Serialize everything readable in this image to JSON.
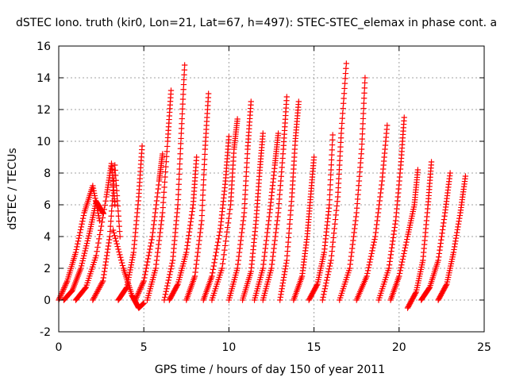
{
  "chart_data": {
    "type": "scatter",
    "title": "dSTEC Iono. truth (kir0, Lon=21, Lat=67, h=497): STEC-STEC_elemax in phase cont. a",
    "xlabel": "GPS time / hours of day 150 of year 2011",
    "ylabel": "dSTEC  / TECUs",
    "xlim": [
      0,
      25
    ],
    "ylim": [
      -2,
      16
    ],
    "xticks": [
      0,
      5,
      10,
      15,
      20,
      25
    ],
    "yticks": [
      -2,
      0,
      2,
      4,
      6,
      8,
      10,
      12,
      14,
      16
    ],
    "xtick_labels": [
      "0",
      "5",
      "10",
      "15",
      "20",
      "25"
    ],
    "ytick_labels": [
      "-2",
      "0",
      "2",
      "4",
      "6",
      "8",
      "10",
      "12",
      "14",
      "16"
    ],
    "grid": true,
    "legend": "none",
    "marker": "+",
    "color": "#ff0000",
    "series": [
      {
        "x": [
          0.0,
          0.5,
          1.0,
          1.5,
          2.0,
          2.4
        ],
        "y": [
          0.0,
          1.2,
          3.0,
          5.5,
          7.2,
          5.0
        ]
      },
      {
        "x": [
          0.3,
          0.8,
          1.3,
          1.8,
          2.2,
          2.6
        ],
        "y": [
          0.0,
          0.6,
          2.0,
          4.2,
          6.2,
          5.5
        ]
      },
      {
        "x": [
          1.0,
          1.6,
          2.2,
          2.8,
          3.1,
          3.3
        ],
        "y": [
          0.0,
          0.8,
          2.8,
          6.5,
          8.6,
          6.0
        ]
      },
      {
        "x": [
          2.0,
          2.6,
          3.0,
          3.3,
          3.6
        ],
        "y": [
          0.0,
          1.2,
          4.0,
          8.5,
          4.0
        ]
      },
      {
        "x": [
          3.2,
          3.8,
          4.3,
          4.7,
          5.0
        ],
        "y": [
          4.4,
          2.0,
          0.3,
          -0.5,
          -0.2
        ]
      },
      {
        "x": [
          3.5,
          4.0,
          4.4,
          4.7,
          4.9
        ],
        "y": [
          0.0,
          0.8,
          3.0,
          6.5,
          9.7
        ]
      },
      {
        "x": [
          4.5,
          5.0,
          5.5,
          5.9,
          6.1
        ],
        "y": [
          0.0,
          1.2,
          4.0,
          7.5,
          9.2
        ]
      },
      {
        "x": [
          5.2,
          5.7,
          6.1,
          6.4,
          6.6
        ],
        "y": [
          0.0,
          2.0,
          5.5,
          10.0,
          13.2
        ]
      },
      {
        "x": [
          6.2,
          6.7,
          7.0,
          7.2,
          7.4
        ],
        "y": [
          0.0,
          2.5,
          6.0,
          10.5,
          14.8
        ]
      },
      {
        "x": [
          6.5,
          7.0,
          7.5,
          7.9,
          8.1
        ],
        "y": [
          0.0,
          1.0,
          3.0,
          6.0,
          9.0
        ]
      },
      {
        "x": [
          7.5,
          8.0,
          8.4,
          8.6,
          8.8
        ],
        "y": [
          0.0,
          1.5,
          5.0,
          9.5,
          13.0
        ]
      },
      {
        "x": [
          8.5,
          9.0,
          9.5,
          9.8,
          10.0
        ],
        "y": [
          0.0,
          1.5,
          4.5,
          7.5,
          10.3
        ]
      },
      {
        "x": [
          9.0,
          9.6,
          10.1,
          10.3,
          10.5
        ],
        "y": [
          0.0,
          2.0,
          6.0,
          9.5,
          11.4
        ]
      },
      {
        "x": [
          10.0,
          10.5,
          10.9,
          11.1,
          11.3
        ],
        "y": [
          0.0,
          2.0,
          5.5,
          9.5,
          12.5
        ]
      },
      {
        "x": [
          10.8,
          11.3,
          11.6,
          11.8,
          12.0
        ],
        "y": [
          0.0,
          1.8,
          5.0,
          8.0,
          10.5
        ]
      },
      {
        "x": [
          11.5,
          12.0,
          12.4,
          12.7,
          12.9
        ],
        "y": [
          0.0,
          2.0,
          5.5,
          8.5,
          10.5
        ]
      },
      {
        "x": [
          12.0,
          12.5,
          12.9,
          13.2,
          13.4
        ],
        "y": [
          0.0,
          2.0,
          5.5,
          9.5,
          12.8
        ]
      },
      {
        "x": [
          13.0,
          13.4,
          13.7,
          13.9,
          14.1
        ],
        "y": [
          0.0,
          2.5,
          6.5,
          10.0,
          12.5
        ]
      },
      {
        "x": [
          13.8,
          14.3,
          14.6,
          14.8,
          15.0
        ],
        "y": [
          0.0,
          1.5,
          4.0,
          6.5,
          9.0
        ]
      },
      {
        "x": [
          14.7,
          15.2,
          15.6,
          15.9,
          16.1
        ],
        "y": [
          0.0,
          1.0,
          3.0,
          6.0,
          10.4
        ]
      },
      {
        "x": [
          15.5,
          16.0,
          16.4,
          16.6,
          16.9
        ],
        "y": [
          0.0,
          2.5,
          6.5,
          10.5,
          14.9
        ]
      },
      {
        "x": [
          16.5,
          17.1,
          17.5,
          17.8,
          18.0
        ],
        "y": [
          0.0,
          2.0,
          5.5,
          9.5,
          14.0
        ]
      },
      {
        "x": [
          17.5,
          18.1,
          18.6,
          19.0,
          19.3
        ],
        "y": [
          0.0,
          1.5,
          4.0,
          7.5,
          11.0
        ]
      },
      {
        "x": [
          18.8,
          19.4,
          19.8,
          20.1,
          20.3
        ],
        "y": [
          0.0,
          2.0,
          5.0,
          8.5,
          11.5
        ]
      },
      {
        "x": [
          19.5,
          20.0,
          20.5,
          20.9,
          21.1
        ],
        "y": [
          0.0,
          1.5,
          4.0,
          6.0,
          8.2
        ]
      },
      {
        "x": [
          20.5,
          21.0,
          21.4,
          21.7,
          21.9
        ],
        "y": [
          -0.5,
          0.5,
          2.5,
          6.0,
          8.7
        ]
      },
      {
        "x": [
          21.3,
          21.8,
          22.3,
          22.7,
          23.0
        ],
        "y": [
          0.0,
          0.8,
          2.5,
          5.5,
          8.0
        ]
      },
      {
        "x": [
          22.3,
          22.8,
          23.2,
          23.6,
          23.9
        ],
        "y": [
          0.0,
          1.0,
          3.0,
          5.5,
          7.8
        ]
      }
    ]
  }
}
